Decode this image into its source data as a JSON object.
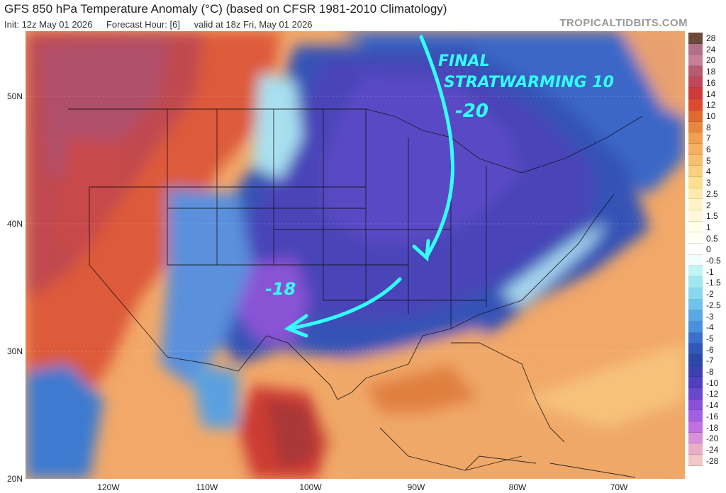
{
  "title": "GFS 850 hPa Temperature Anomaly (°C) (based on CFSR 1981-2010 Climatology)",
  "init": "Init: 12z May 01 2026",
  "forecast_hour": "Forecast Hour: [6]",
  "valid": "valid at 18z Fri, May 01 2026",
  "brand": "TROPICALTIDBITS.COM",
  "lat_labels": [
    "50N",
    "40N",
    "30N",
    "20N"
  ],
  "lon_labels": [
    "120W",
    "110W",
    "100W",
    "90W",
    "80W",
    "70W"
  ],
  "colorbar": {
    "labels": [
      "28",
      "24",
      "20",
      "18",
      "16",
      "14",
      "12",
      "10",
      "8",
      "7",
      "6",
      "5",
      "4",
      "3",
      "2.5",
      "2",
      "1.5",
      "1",
      "0.5",
      "0",
      "-0.5",
      "-1",
      "-1.5",
      "-2",
      "-2.5",
      "-3",
      "-4",
      "-5",
      "-6",
      "-7",
      "-8",
      "-10",
      "-12",
      "-14",
      "-16",
      "-18",
      "-20",
      "-24",
      "-28"
    ],
    "colors": [
      "#6b4a3c",
      "#b07088",
      "#c8809a",
      "#b85a70",
      "#c0485a",
      "#d03a3a",
      "#dd4a30",
      "#e06a30",
      "#e88840",
      "#f0a050",
      "#f4b060",
      "#f6c070",
      "#f8d080",
      "#fae090",
      "#fcecac",
      "#fef4c8",
      "#fff8dc",
      "#ffffea",
      "#fffff6",
      "#ffffff",
      "#f0fffe",
      "#c0f4f4",
      "#a0e8f0",
      "#88d8f0",
      "#70c4ec",
      "#5aa8e4",
      "#4a90dc",
      "#3a70cc",
      "#3058b8",
      "#2c48a8",
      "#3c40b0",
      "#5040c0",
      "#6a48cc",
      "#8a50d8",
      "#a060e0",
      "#c070e0",
      "#d890d8",
      "#e8b0c8",
      "#f0c8c8"
    ]
  },
  "annotations": {
    "final": "FINAL",
    "strat": "STRATWARMING 10",
    "minus20": "-20",
    "minus18": "-18"
  }
}
